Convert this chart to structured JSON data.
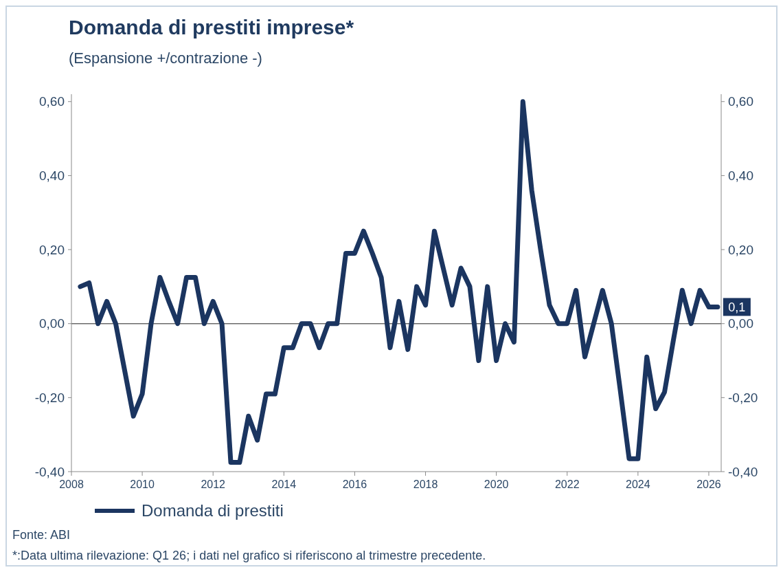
{
  "chart_data": {
    "type": "line",
    "title": "Domanda di prestiti imprese*",
    "subtitle": "(Espansione +/contrazione -)",
    "x": [
      2008.25,
      2008.5,
      2008.75,
      2009,
      2009.25,
      2009.5,
      2009.75,
      2010,
      2010.25,
      2010.5,
      2010.75,
      2011,
      2011.25,
      2011.5,
      2011.75,
      2012,
      2012.25,
      2012.5,
      2012.75,
      2013,
      2013.25,
      2013.5,
      2013.75,
      2014,
      2014.25,
      2014.5,
      2014.75,
      2015,
      2015.25,
      2015.5,
      2015.75,
      2016,
      2016.25,
      2016.5,
      2016.75,
      2017,
      2017.25,
      2017.5,
      2017.75,
      2018,
      2018.25,
      2018.5,
      2018.75,
      2019,
      2019.25,
      2019.5,
      2019.75,
      2020,
      2020.25,
      2020.5,
      2020.75,
      2021,
      2021.25,
      2021.5,
      2021.75,
      2022,
      2022.25,
      2022.5,
      2022.75,
      2023,
      2023.25,
      2023.5,
      2023.75,
      2024,
      2024.25,
      2024.5,
      2024.75,
      2025,
      2025.25,
      2025.5,
      2025.75,
      2026,
      2026.25
    ],
    "series": [
      {
        "name": "Domanda di prestiti",
        "color": "#1b3560",
        "values": [
          0.1,
          0.11,
          0,
          0.06,
          0,
          -0.125,
          -0.25,
          -0.19,
          0,
          0.125,
          0.06,
          0,
          0.125,
          0.125,
          0,
          0.06,
          0,
          -0.375,
          -0.375,
          -0.25,
          -0.315,
          -0.19,
          -0.19,
          -0.065,
          -0.065,
          0,
          0,
          -0.065,
          0,
          0,
          0.19,
          0.19,
          0.25,
          0.19,
          0.125,
          -0.065,
          0.06,
          -0.07,
          0.1,
          0.05,
          0.25,
          0.15,
          0.05,
          0.15,
          0.1,
          -0.1,
          0.1,
          -0.1,
          0,
          -0.05,
          0.6,
          0.36,
          0.2,
          0.05,
          0,
          0,
          0.09,
          -0.09,
          0,
          0.09,
          0,
          -0.18,
          -0.365,
          -0.365,
          -0.09,
          -0.23,
          -0.185,
          -0.045,
          0.09,
          0,
          0.09,
          0.045,
          0.045
        ]
      }
    ],
    "xlim": [
      2008,
      2026.35
    ],
    "xticks": [
      2008,
      2010,
      2012,
      2014,
      2016,
      2018,
      2020,
      2022,
      2024,
      2026
    ],
    "ylim": [
      -0.4,
      0.62
    ],
    "yticks": [
      {
        "value": -0.4,
        "label": "-0,40"
      },
      {
        "value": -0.2,
        "label": "-0,20"
      },
      {
        "value": 0,
        "label": "0,00"
      },
      {
        "value": 0.2,
        "label": "0,20"
      },
      {
        "value": 0.4,
        "label": "0,40"
      },
      {
        "value": 0.6,
        "label": "0,60"
      }
    ],
    "y2lim": [
      -0.4,
      0.62
    ],
    "y2ticks": [
      {
        "value": -0.4,
        "label": "-0,40"
      },
      {
        "value": -0.2,
        "label": "-0,20"
      },
      {
        "value": 0,
        "label": "0,00"
      },
      {
        "value": 0.2,
        "label": "0,20"
      },
      {
        "value": 0.4,
        "label": "0,40"
      },
      {
        "value": 0.6,
        "label": "0,60"
      }
    ],
    "ref_lines": [
      {
        "axis": "y",
        "value": 0,
        "color": "#6b6b6b"
      }
    ],
    "annotations": [
      {
        "text": "0,1",
        "x": 2026.25,
        "y": 0.045
      },
      "Fonte: ABI",
      "*:Data ultima rilevazione: Q1 26; i dati nel grafico si riferiscono al trimestre precedente."
    ],
    "legend": "bottom left",
    "grid": false,
    "marker": "none",
    "line_style": "solid"
  }
}
